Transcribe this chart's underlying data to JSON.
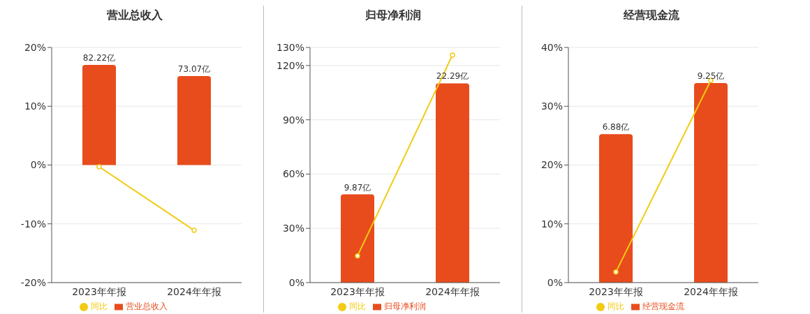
{
  "chart_data": [
    {
      "type": "bar",
      "title": "营业总收入",
      "categories": [
        "2023年年报",
        "2024年年报"
      ],
      "series": [
        {
          "name": "营业总收入",
          "axis": "y2",
          "color": "#e84c1c",
          "values": [
            82.22,
            73.07
          ],
          "value_labels": [
            "82.22亿",
            "73.07亿"
          ]
        },
        {
          "name": "同比",
          "type": "line",
          "color": "#f2cb12",
          "values": [
            -0.3,
            -11.1
          ]
        }
      ],
      "ylim": [
        -20,
        20
      ],
      "yticks": [
        {
          "value": -20,
          "label": "-20%"
        },
        {
          "value": -10,
          "label": "-10%"
        },
        {
          "value": 0,
          "label": "0%"
        },
        {
          "value": 10,
          "label": "10%"
        },
        {
          "value": 20,
          "label": "20%"
        }
      ],
      "y2lim": [
        -96.6,
        96.6
      ],
      "grid": "y",
      "legend": "bottom",
      "marker": "circle"
    },
    {
      "type": "bar",
      "title": "归母净利润",
      "categories": [
        "2023年年报",
        "2024年年报"
      ],
      "series": [
        {
          "name": "归母净利润",
          "axis": "y2",
          "color": "#e84c1c",
          "values": [
            9.87,
            22.29
          ],
          "value_labels": [
            "9.87亿",
            "22.29亿"
          ]
        },
        {
          "name": "同比",
          "type": "line",
          "color": "#f2cb12",
          "values": [
            14.8,
            125.8
          ]
        }
      ],
      "ylim": [
        0,
        130
      ],
      "yticks": [
        {
          "value": 0,
          "label": "0%"
        },
        {
          "value": 30,
          "label": "30%"
        },
        {
          "value": 60,
          "label": "60%"
        },
        {
          "value": 90,
          "label": "90%"
        },
        {
          "value": 120,
          "label": "120%"
        },
        {
          "value": 130,
          "label": "130%"
        }
      ],
      "y2lim": [
        0,
        26.3
      ],
      "grid": "y",
      "legend": "bottom",
      "marker": "circle"
    },
    {
      "type": "bar",
      "title": "经营现金流",
      "categories": [
        "2023年年报",
        "2024年年报"
      ],
      "series": [
        {
          "name": "经营现金流",
          "axis": "y2",
          "color": "#e84c1c",
          "values": [
            6.88,
            9.25
          ],
          "value_labels": [
            "6.88亿",
            "9.25亿"
          ]
        },
        {
          "name": "同比",
          "type": "line",
          "color": "#f2cb12",
          "values": [
            1.8,
            34.4
          ]
        }
      ],
      "ylim": [
        0,
        40
      ],
      "yticks": [
        {
          "value": 0,
          "label": "0%"
        },
        {
          "value": 10,
          "label": "10%"
        },
        {
          "value": 20,
          "label": "20%"
        },
        {
          "value": 30,
          "label": "30%"
        },
        {
          "value": 40,
          "label": "40%"
        }
      ],
      "y2lim": [
        0,
        10.9
      ],
      "grid": "y",
      "legend": "bottom",
      "marker": "circle"
    }
  ]
}
